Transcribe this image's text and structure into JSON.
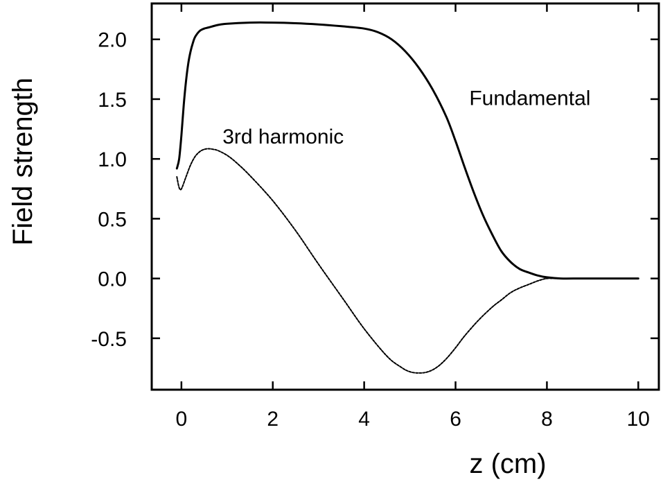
{
  "chart_data": {
    "type": "line",
    "title": "",
    "xlabel": "z (cm)",
    "ylabel": "Field strength",
    "xlim": [
      -0.65,
      10.45
    ],
    "ylim": [
      -0.93,
      2.3
    ],
    "xticks": [
      0,
      2,
      4,
      6,
      8,
      10
    ],
    "yticks": [
      -0.5,
      0.0,
      0.5,
      1.0,
      1.5,
      2.0
    ],
    "xtick_labels": [
      "0",
      "2",
      "4",
      "6",
      "8",
      "10"
    ],
    "ytick_labels": [
      "-0.5",
      "0.0",
      "0.5",
      "1.0",
      "1.5",
      "2.0"
    ],
    "grid": false,
    "legend": "none",
    "annotations": [
      {
        "text": "Fundamental",
        "x": 6.3,
        "y": 1.45
      },
      {
        "text": "3rd harmonic",
        "x": 0.9,
        "y": 1.13
      }
    ],
    "series": [
      {
        "color": "#000000",
        "line_style": "solid",
        "x": [
          -0.1,
          -0.05,
          0,
          0.05,
          0.1,
          0.15,
          0.2,
          0.25,
          0.3,
          0.4,
          0.5,
          0.6,
          0.8,
          1.0,
          1.5,
          2.0,
          2.5,
          3.0,
          3.5,
          4.0,
          4.3,
          4.6,
          4.9,
          5.2,
          5.5,
          5.8,
          6.0,
          6.2,
          6.4,
          6.6,
          6.8,
          7.0,
          7.2,
          7.4,
          7.6,
          7.8,
          8.0,
          8.3,
          8.7,
          9.0,
          10.0
        ],
        "y": [
          0.92,
          1.0,
          1.2,
          1.45,
          1.65,
          1.8,
          1.9,
          1.97,
          2.02,
          2.07,
          2.09,
          2.1,
          2.12,
          2.13,
          2.14,
          2.14,
          2.135,
          2.125,
          2.11,
          2.09,
          2.06,
          2.0,
          1.9,
          1.76,
          1.58,
          1.35,
          1.15,
          0.93,
          0.72,
          0.53,
          0.37,
          0.23,
          0.14,
          0.08,
          0.05,
          0.025,
          0.01,
          0.0,
          0.0,
          0.0,
          0.0
        ]
      },
      {
        "color": "#000000",
        "line_style": "dotted",
        "x": [
          -0.1,
          -0.05,
          0,
          0.1,
          0.2,
          0.3,
          0.4,
          0.5,
          0.6,
          0.7,
          0.8,
          1.0,
          1.2,
          1.5,
          2.0,
          2.5,
          3.0,
          3.5,
          4.0,
          4.5,
          4.8,
          5.0,
          5.2,
          5.4,
          5.6,
          5.8,
          6.0,
          6.2,
          6.5,
          6.8,
          7.0,
          7.2,
          7.4,
          7.6,
          7.8,
          8.0,
          8.2,
          8.5,
          9.0,
          10.0
        ],
        "y": [
          0.85,
          0.76,
          0.75,
          0.85,
          0.95,
          1.02,
          1.06,
          1.08,
          1.085,
          1.08,
          1.07,
          1.03,
          0.97,
          0.86,
          0.65,
          0.4,
          0.12,
          -0.15,
          -0.42,
          -0.65,
          -0.74,
          -0.78,
          -0.79,
          -0.78,
          -0.74,
          -0.67,
          -0.58,
          -0.48,
          -0.35,
          -0.24,
          -0.18,
          -0.12,
          -0.08,
          -0.05,
          -0.02,
          0.0,
          0.0,
          0.0,
          0.0,
          0.0
        ]
      }
    ]
  }
}
